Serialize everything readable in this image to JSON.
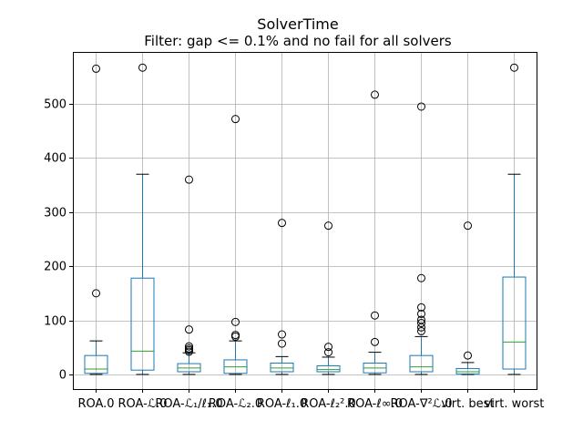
{
  "chart_data": {
    "type": "box",
    "title": "SolverTime",
    "subtitle": "Filter: gap <= 0.1% and no fail for all solvers",
    "xlabel": "",
    "ylabel": "",
    "ylim": [
      -27,
      596
    ],
    "yticks": [
      0,
      100,
      200,
      300,
      400,
      500
    ],
    "grid": true,
    "colors": {
      "box": "#1f77b4",
      "median": "#2ca02c",
      "whisker": "#1f77b4",
      "cap": "#000000",
      "flier": "#000000",
      "grid": "#b0b0b0"
    },
    "categories": [
      "ROA.0",
      "ROA-ℒ.0",
      "ROA-ℒ₁/ℓ₁.0",
      "ROA-ℒ₂.0",
      "ROA-ℓ₁.0",
      "ROA-ℓ₂².0",
      "ROA-ℓ∞.0",
      "ROA-∇²ℒ.0",
      "virt. best",
      "virt. worst"
    ],
    "boxes": [
      {
        "whislo": 0,
        "q1": 2,
        "med": 10,
        "q3": 35,
        "whishi": 62,
        "fliers": [
          150,
          565
        ]
      },
      {
        "whislo": 0,
        "q1": 8,
        "med": 43,
        "q3": 178,
        "whishi": 370,
        "fliers": [
          567
        ]
      },
      {
        "whislo": 0,
        "q1": 5,
        "med": 12,
        "q3": 20,
        "whishi": 40,
        "fliers": [
          42,
          45,
          48,
          52,
          83,
          360
        ]
      },
      {
        "whislo": 0,
        "q1": 2,
        "med": 14,
        "q3": 27,
        "whishi": 62,
        "fliers": [
          70,
          73,
          97,
          472
        ]
      },
      {
        "whislo": 0,
        "q1": 5,
        "med": 12,
        "q3": 21,
        "whishi": 33,
        "fliers": [
          57,
          74,
          280
        ]
      },
      {
        "whislo": 0,
        "q1": 5,
        "med": 9,
        "q3": 16,
        "whishi": 32,
        "fliers": [
          41,
          51,
          275
        ]
      },
      {
        "whislo": 0,
        "q1": 3,
        "med": 12,
        "q3": 21,
        "whishi": 41,
        "fliers": [
          60,
          109,
          517
        ]
      },
      {
        "whislo": 0,
        "q1": 5,
        "med": 14,
        "q3": 35,
        "whishi": 70,
        "fliers": [
          80,
          87,
          95,
          101,
          112,
          124,
          178,
          495
        ]
      },
      {
        "whislo": 0,
        "q1": 1,
        "med": 5,
        "q3": 11,
        "whishi": 22,
        "fliers": [
          35,
          275
        ]
      },
      {
        "whislo": 0,
        "q1": 10,
        "med": 60,
        "q3": 180,
        "whishi": 370,
        "fliers": [
          567
        ]
      }
    ]
  }
}
